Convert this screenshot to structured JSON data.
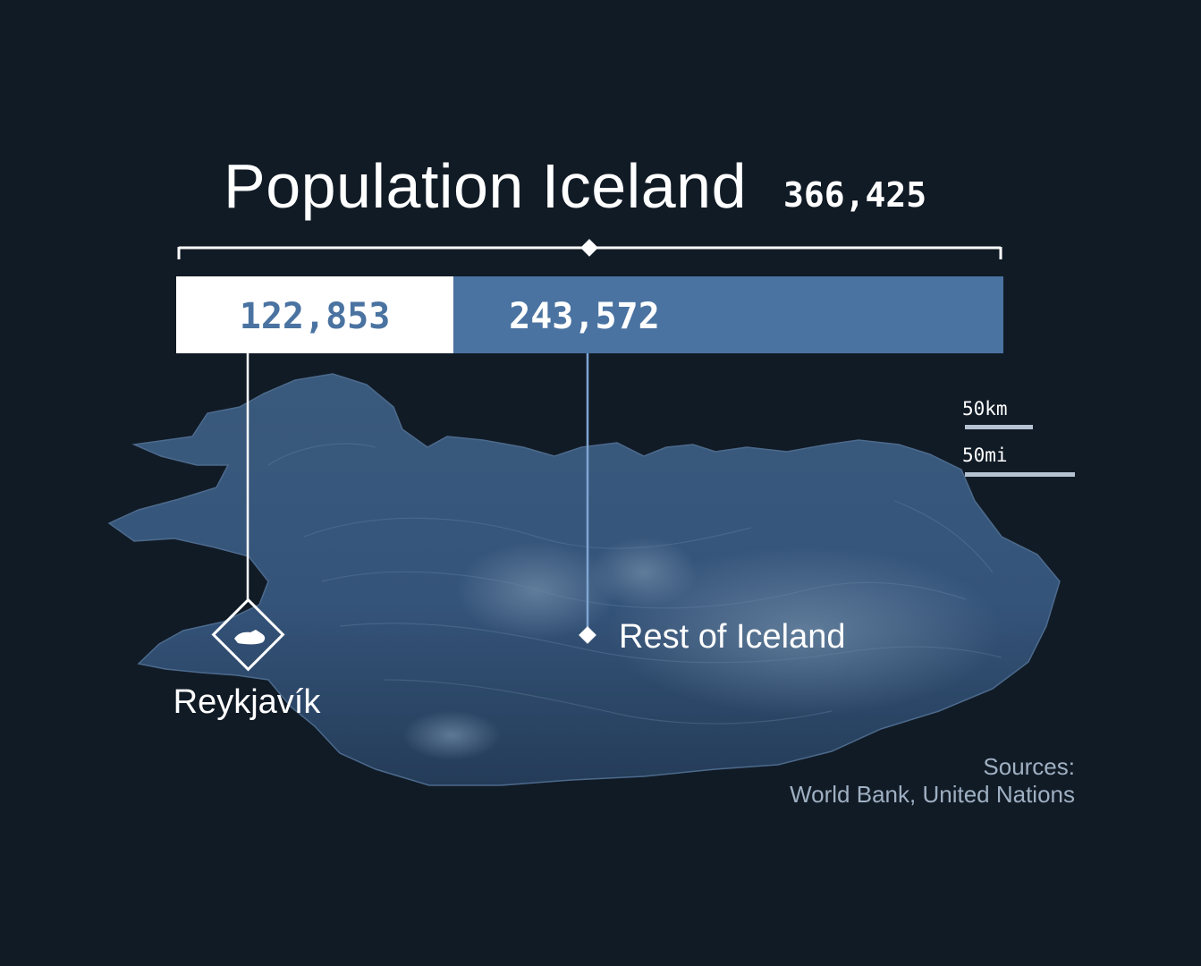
{
  "chart_data": {
    "type": "bar",
    "title": "Population Iceland",
    "total_label": "366,425",
    "total": 366425,
    "categories": [
      "Reykjavík",
      "Rest of Iceland"
    ],
    "values": [
      122853,
      243572
    ],
    "value_labels": [
      "122,853",
      "243,572"
    ],
    "segment_colors": [
      "#ffffff",
      "#4a73a1"
    ],
    "value_text_colors": [
      "#4a73a1",
      "#ffffff"
    ]
  },
  "scale_bar": {
    "km_label": "50km",
    "mi_label": "50mi"
  },
  "sources": {
    "heading": "Sources:",
    "text": "World Bank, United Nations"
  },
  "colors": {
    "background": "#111b26",
    "map_fill": "#2c4766",
    "accent": "#4a73a1"
  },
  "icons": {
    "reykjavik_marker": "capital-city-diamond-icon"
  }
}
